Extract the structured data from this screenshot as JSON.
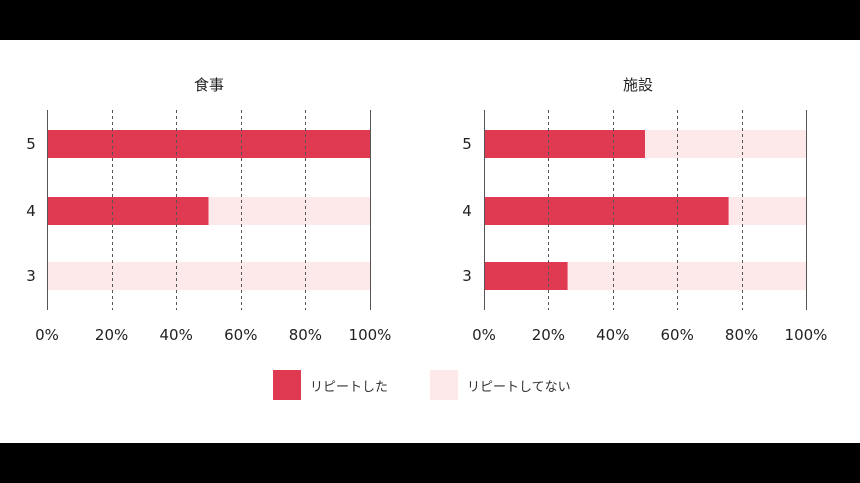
{
  "colors": {
    "repeat": "#e03a52",
    "norepeat": "#fde8ea",
    "axis": "#555555",
    "grid": "#555555"
  },
  "legend": [
    {
      "label": "リピートした",
      "color": "#e03a52"
    },
    {
      "label": "リピートしてない",
      "color": "#fde8ea"
    }
  ],
  "chart_data": [
    {
      "type": "bar",
      "orientation": "horizontal",
      "stacked": true,
      "title": "食事",
      "categories": [
        "5",
        "4",
        "3"
      ],
      "series": [
        {
          "name": "リピートした",
          "values": [
            100,
            50,
            0
          ]
        },
        {
          "name": "リピートしてない",
          "values": [
            0,
            50,
            100
          ]
        }
      ],
      "xlim": [
        0,
        100
      ],
      "xticks": [
        "0%",
        "20%",
        "40%",
        "60%",
        "80%",
        "100%"
      ],
      "grid": true
    },
    {
      "type": "bar",
      "orientation": "horizontal",
      "stacked": true,
      "title": "施設",
      "categories": [
        "5",
        "4",
        "3"
      ],
      "series": [
        {
          "name": "リピートした",
          "values": [
            50,
            76,
            26
          ]
        },
        {
          "name": "リピートしてない",
          "values": [
            50,
            24,
            74
          ]
        }
      ],
      "xlim": [
        0,
        100
      ],
      "xticks": [
        "0%",
        "20%",
        "40%",
        "60%",
        "80%",
        "100%"
      ],
      "grid": true
    }
  ]
}
